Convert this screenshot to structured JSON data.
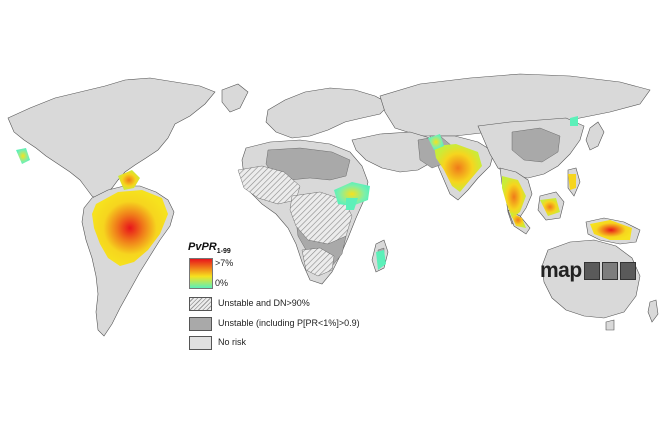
{
  "legend": {
    "title_main": "PvPR",
    "title_sub": "1-99",
    "max_label": ">7%",
    "min_label": "0%",
    "gradient_colors": [
      "#e8141b",
      "#f07a1a",
      "#f6e21e",
      "#5cf0b9"
    ],
    "categories": [
      {
        "label": "Unstable and DN>90%",
        "pattern": "hatched"
      },
      {
        "label": "Unstable (including P[PR<1%]>0.9)",
        "color": "#a9a9a9"
      },
      {
        "label": "No risk",
        "color": "#e0e0e0"
      }
    ]
  },
  "logo": {
    "text": "map"
  },
  "colors": {
    "land": "#d9d9d9",
    "unstable": "#a9a9a9",
    "border": "#555555",
    "high": "#e8141b",
    "mid": "#f6a21e",
    "low": "#f6e21e",
    "min": "#5cf0b9"
  }
}
